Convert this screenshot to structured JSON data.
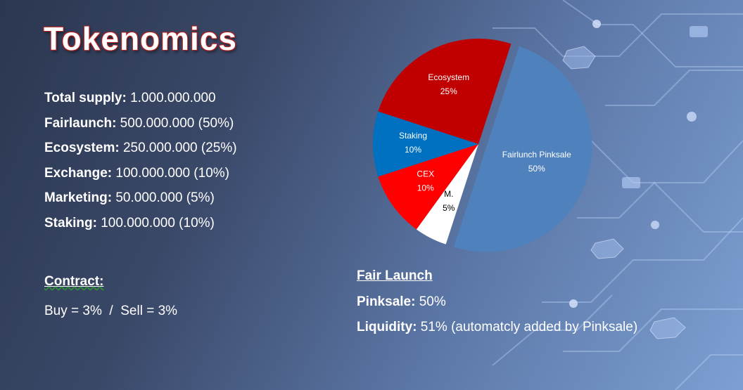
{
  "title": "Tokenomics",
  "stats": [
    {
      "label": "Total supply:",
      "value": " 1.000.000.000"
    },
    {
      "label": "Fairlaunch:",
      "value": " 500.000.000  (50%)"
    },
    {
      "label": "Ecosystem:",
      "value": "  250.000.000  (25%)"
    },
    {
      "label": "Exchange:",
      "value": " 100.000.000  (10%)"
    },
    {
      "label": "Marketing:",
      "value": "  50.000.000  (5%)"
    },
    {
      "label": "Staking:",
      "value": "  100.000.000  (10%)"
    }
  ],
  "contract": {
    "heading": "Contract:",
    "line": "Buy = 3%  /  Sell = 3%"
  },
  "fair_launch": {
    "heading": "Fair Launch",
    "pinksale_label": "Pinksale:",
    "pinksale_value": " 50%",
    "liquidity_label": "Liquidity:",
    "liquidity_value": " 51%  (automatcly  added  by  Pinksale)"
  },
  "chart_data": {
    "type": "pie",
    "slices": [
      {
        "name": "Fairlunch Pinksale",
        "value": 50,
        "label": "50%",
        "color": "#4f81bd",
        "label_color": "#ffffff"
      },
      {
        "name": "M.",
        "value": 5,
        "label": "5%",
        "color": "#ffffff",
        "label_color": "#000000"
      },
      {
        "name": "CEX",
        "value": 10,
        "label": "10%",
        "color": "#ff0000",
        "label_color": "#ffffff"
      },
      {
        "name": "Staking",
        "value": 10,
        "label": "10%",
        "color": "#0070c0",
        "label_color": "#ffffff"
      },
      {
        "name": "Ecosystem",
        "value": 25,
        "label": "25%",
        "color": "#c00000",
        "label_color": "#ffffff"
      }
    ]
  }
}
